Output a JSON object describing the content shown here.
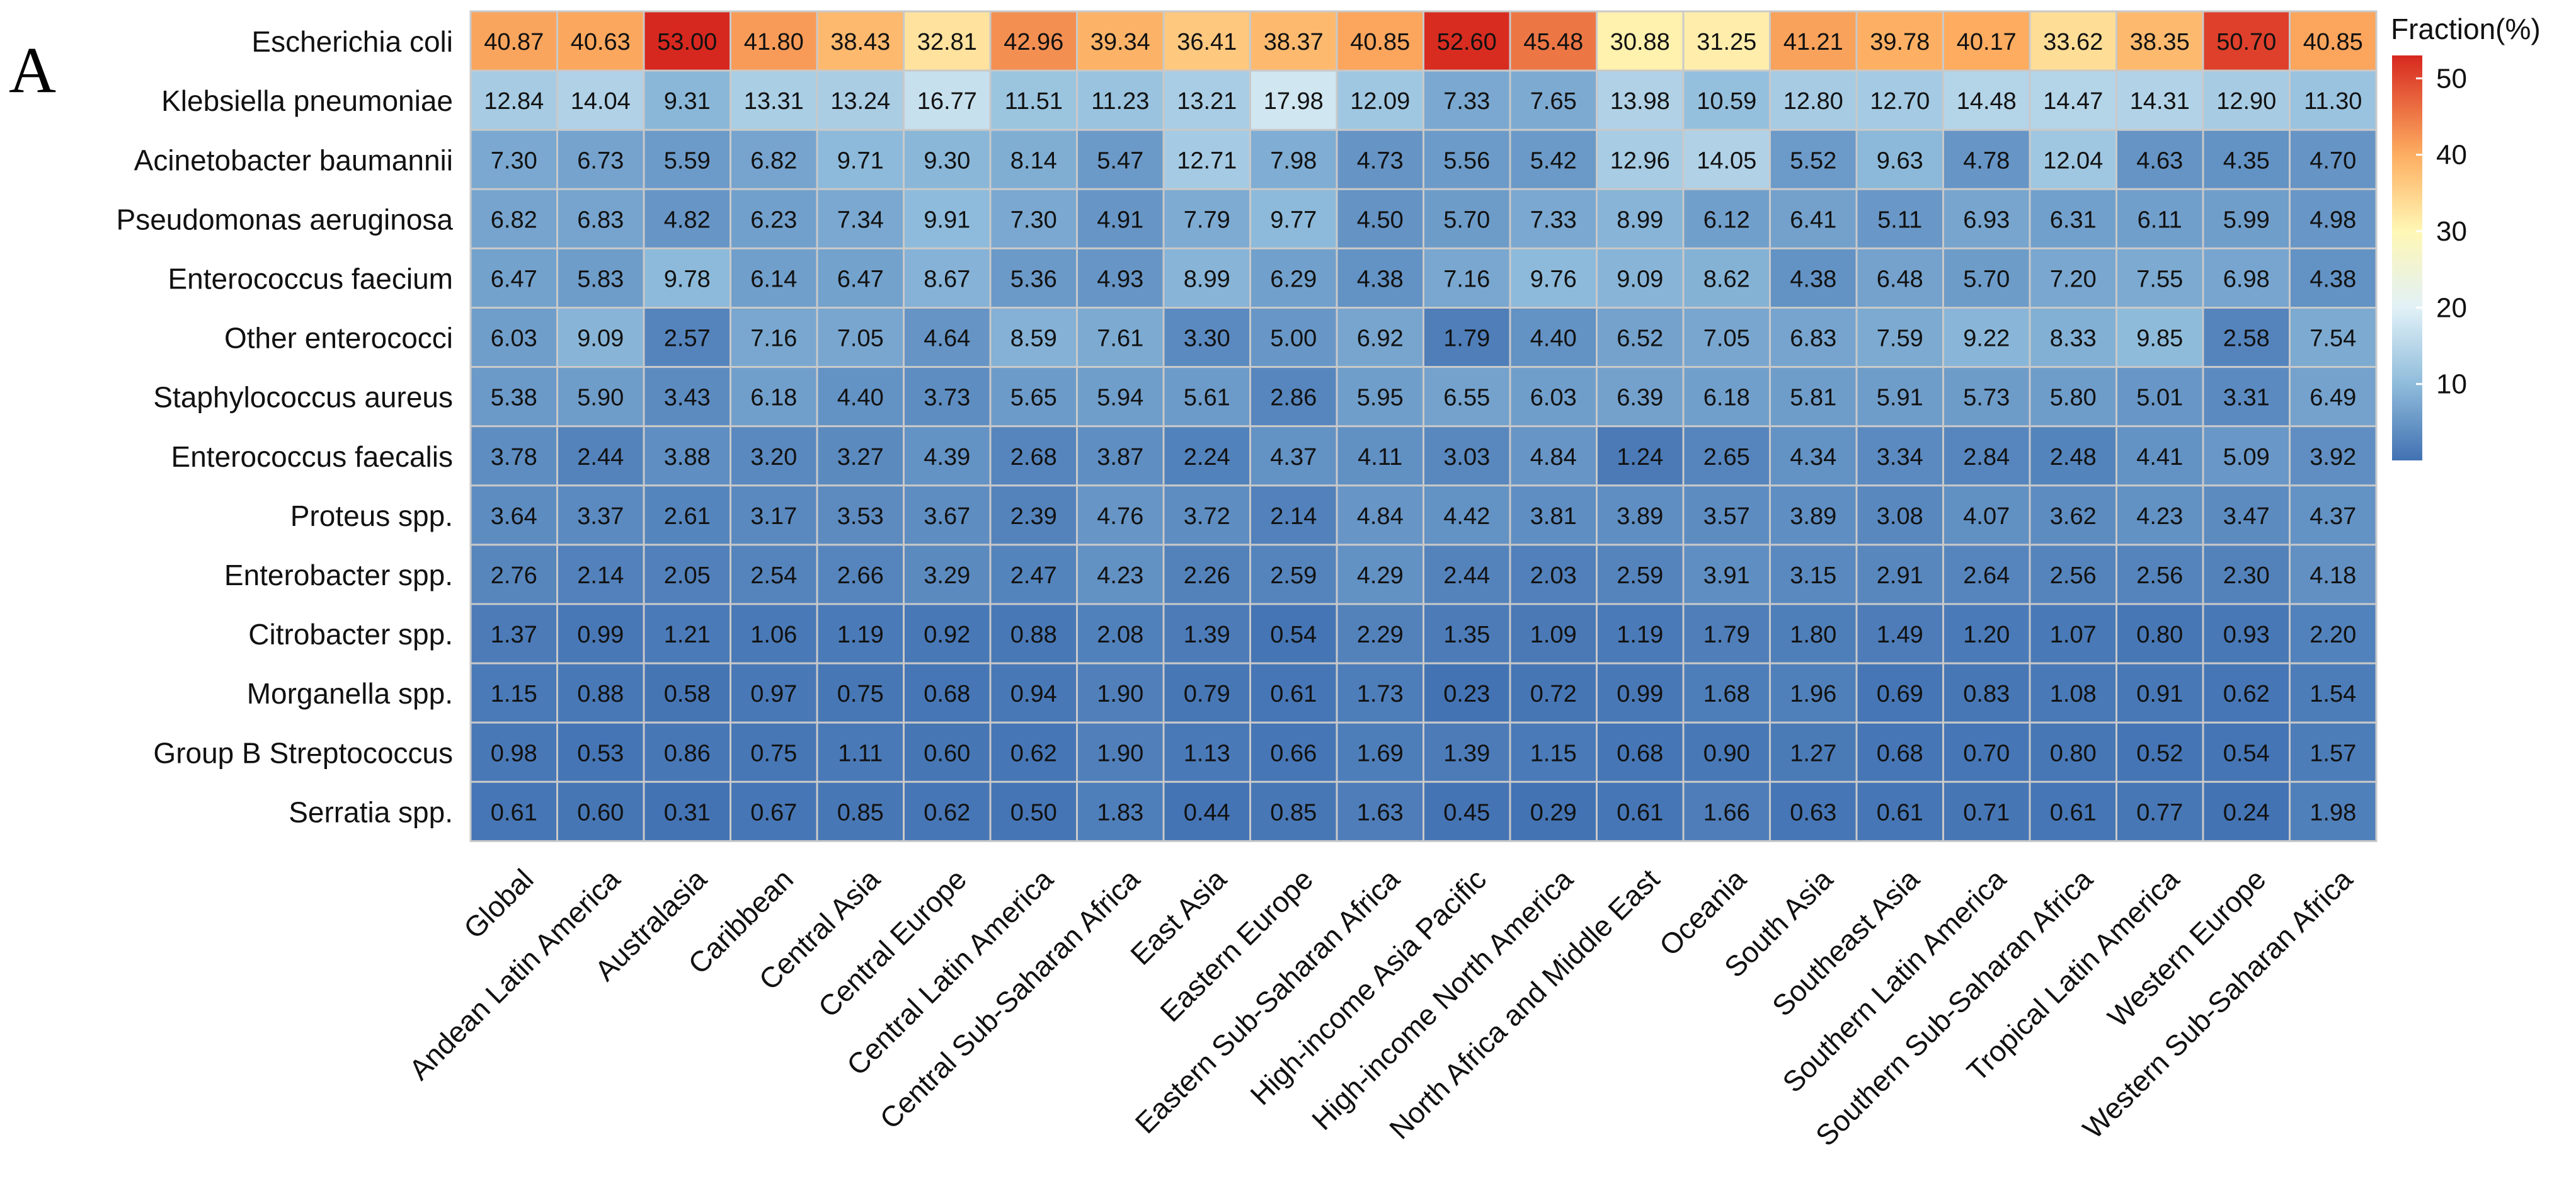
{
  "panel_label": "A",
  "chart_data": {
    "type": "heatmap",
    "title": "",
    "xlabel": "",
    "ylabel": "",
    "rows": [
      "Escherichia coli",
      "Klebsiella pneumoniae",
      "Acinetobacter baumannii",
      "Pseudomonas aeruginosa",
      "Enterococcus faecium",
      "Other enterococci",
      "Staphylococcus aureus",
      "Enterococcus faecalis",
      "Proteus spp.",
      "Enterobacter spp.",
      "Citrobacter spp.",
      "Morganella spp.",
      "Group B Streptococcus",
      "Serratia spp."
    ],
    "columns": [
      "Global",
      "Andean Latin America",
      "Australasia",
      "Caribbean",
      "Central Asia",
      "Central Europe",
      "Central Latin America",
      "Central Sub-Saharan Africa",
      "East Asia",
      "Eastern Europe",
      "Eastern Sub-Saharan Africa",
      "High-income Asia Pacific",
      "High-income North America",
      "North Africa and Middle East",
      "Oceania",
      "South Asia",
      "Southeast Asia",
      "Southern Latin America",
      "Southern Sub-Saharan Africa",
      "Tropical Latin America",
      "Western Europe",
      "Western Sub-Saharan Africa"
    ],
    "values": [
      [
        40.87,
        40.63,
        53.0,
        41.8,
        38.43,
        32.81,
        42.96,
        39.34,
        36.41,
        38.37,
        40.85,
        52.6,
        45.48,
        30.88,
        31.25,
        41.21,
        39.78,
        40.17,
        33.62,
        38.35,
        50.7,
        40.85
      ],
      [
        12.84,
        14.04,
        9.31,
        13.31,
        13.24,
        16.77,
        11.51,
        11.23,
        13.21,
        17.98,
        12.09,
        7.33,
        7.65,
        13.98,
        10.59,
        12.8,
        12.7,
        14.48,
        14.47,
        14.31,
        12.9,
        11.3
      ],
      [
        7.3,
        6.73,
        5.59,
        6.82,
        9.71,
        9.3,
        8.14,
        5.47,
        12.71,
        7.98,
        4.73,
        5.56,
        5.42,
        12.96,
        14.05,
        5.52,
        9.63,
        4.78,
        12.04,
        4.63,
        4.35,
        4.7
      ],
      [
        6.82,
        6.83,
        4.82,
        6.23,
        7.34,
        9.91,
        7.3,
        4.91,
        7.79,
        9.77,
        4.5,
        5.7,
        7.33,
        8.99,
        6.12,
        6.41,
        5.11,
        6.93,
        6.31,
        6.11,
        5.99,
        4.98
      ],
      [
        6.47,
        5.83,
        9.78,
        6.14,
        6.47,
        8.67,
        5.36,
        4.93,
        8.99,
        6.29,
        4.38,
        7.16,
        9.76,
        9.09,
        8.62,
        4.38,
        6.48,
        5.7,
        7.2,
        7.55,
        6.98,
        4.38
      ],
      [
        6.03,
        9.09,
        2.57,
        7.16,
        7.05,
        4.64,
        8.59,
        7.61,
        3.3,
        5.0,
        6.92,
        1.79,
        4.4,
        6.52,
        7.05,
        6.83,
        7.59,
        9.22,
        8.33,
        9.85,
        2.58,
        7.54
      ],
      [
        5.38,
        5.9,
        3.43,
        6.18,
        4.4,
        3.73,
        5.65,
        5.94,
        5.61,
        2.86,
        5.95,
        6.55,
        6.03,
        6.39,
        6.18,
        5.81,
        5.91,
        5.73,
        5.8,
        5.01,
        3.31,
        6.49
      ],
      [
        3.78,
        2.44,
        3.88,
        3.2,
        3.27,
        4.39,
        2.68,
        3.87,
        2.24,
        4.37,
        4.11,
        3.03,
        4.84,
        1.24,
        2.65,
        4.34,
        3.34,
        2.84,
        2.48,
        4.41,
        5.09,
        3.92
      ],
      [
        3.64,
        3.37,
        2.61,
        3.17,
        3.53,
        3.67,
        2.39,
        4.76,
        3.72,
        2.14,
        4.84,
        4.42,
        3.81,
        3.89,
        3.57,
        3.89,
        3.08,
        4.07,
        3.62,
        4.23,
        3.47,
        4.37
      ],
      [
        2.76,
        2.14,
        2.05,
        2.54,
        2.66,
        3.29,
        2.47,
        4.23,
        2.26,
        2.59,
        4.29,
        2.44,
        2.03,
        2.59,
        3.91,
        3.15,
        2.91,
        2.64,
        2.56,
        2.56,
        2.3,
        4.18
      ],
      [
        1.37,
        0.99,
        1.21,
        1.06,
        1.19,
        0.92,
        0.88,
        2.08,
        1.39,
        0.54,
        2.29,
        1.35,
        1.09,
        1.19,
        1.79,
        1.8,
        1.49,
        1.2,
        1.07,
        0.8,
        0.93,
        2.2
      ],
      [
        1.15,
        0.88,
        0.58,
        0.97,
        0.75,
        0.68,
        0.94,
        1.9,
        0.79,
        0.61,
        1.73,
        0.23,
        0.72,
        0.99,
        1.68,
        1.96,
        0.69,
        0.83,
        1.08,
        0.91,
        0.62,
        1.54
      ],
      [
        0.98,
        0.53,
        0.86,
        0.75,
        1.11,
        0.6,
        0.62,
        1.9,
        1.13,
        0.66,
        1.69,
        1.39,
        1.15,
        0.68,
        0.9,
        1.27,
        0.68,
        0.7,
        0.8,
        0.52,
        0.54,
        1.57
      ],
      [
        0.61,
        0.6,
        0.31,
        0.67,
        0.85,
        0.62,
        0.5,
        1.83,
        0.44,
        0.85,
        1.63,
        0.45,
        0.29,
        0.61,
        1.66,
        0.63,
        0.61,
        0.71,
        0.61,
        0.77,
        0.24,
        1.98
      ]
    ],
    "legend": {
      "title": "Fraction(%)",
      "ticks": [
        10,
        20,
        30,
        40,
        50
      ],
      "range": [
        0.23,
        53.0
      ],
      "placement": "right"
    },
    "color_scale": {
      "low": "#4472b3",
      "mid": "#ffffbf",
      "high": "#d73027",
      "stops": [
        {
          "value": 0,
          "color": "#4171b2"
        },
        {
          "value": 10,
          "color": "#8fbcdb"
        },
        {
          "value": 20,
          "color": "#e1f1f7"
        },
        {
          "value": 30,
          "color": "#fff7b5"
        },
        {
          "value": 40,
          "color": "#fdae61"
        },
        {
          "value": 53,
          "color": "#d7281f"
        }
      ]
    },
    "cell_border_color": "#c9c9c9"
  }
}
